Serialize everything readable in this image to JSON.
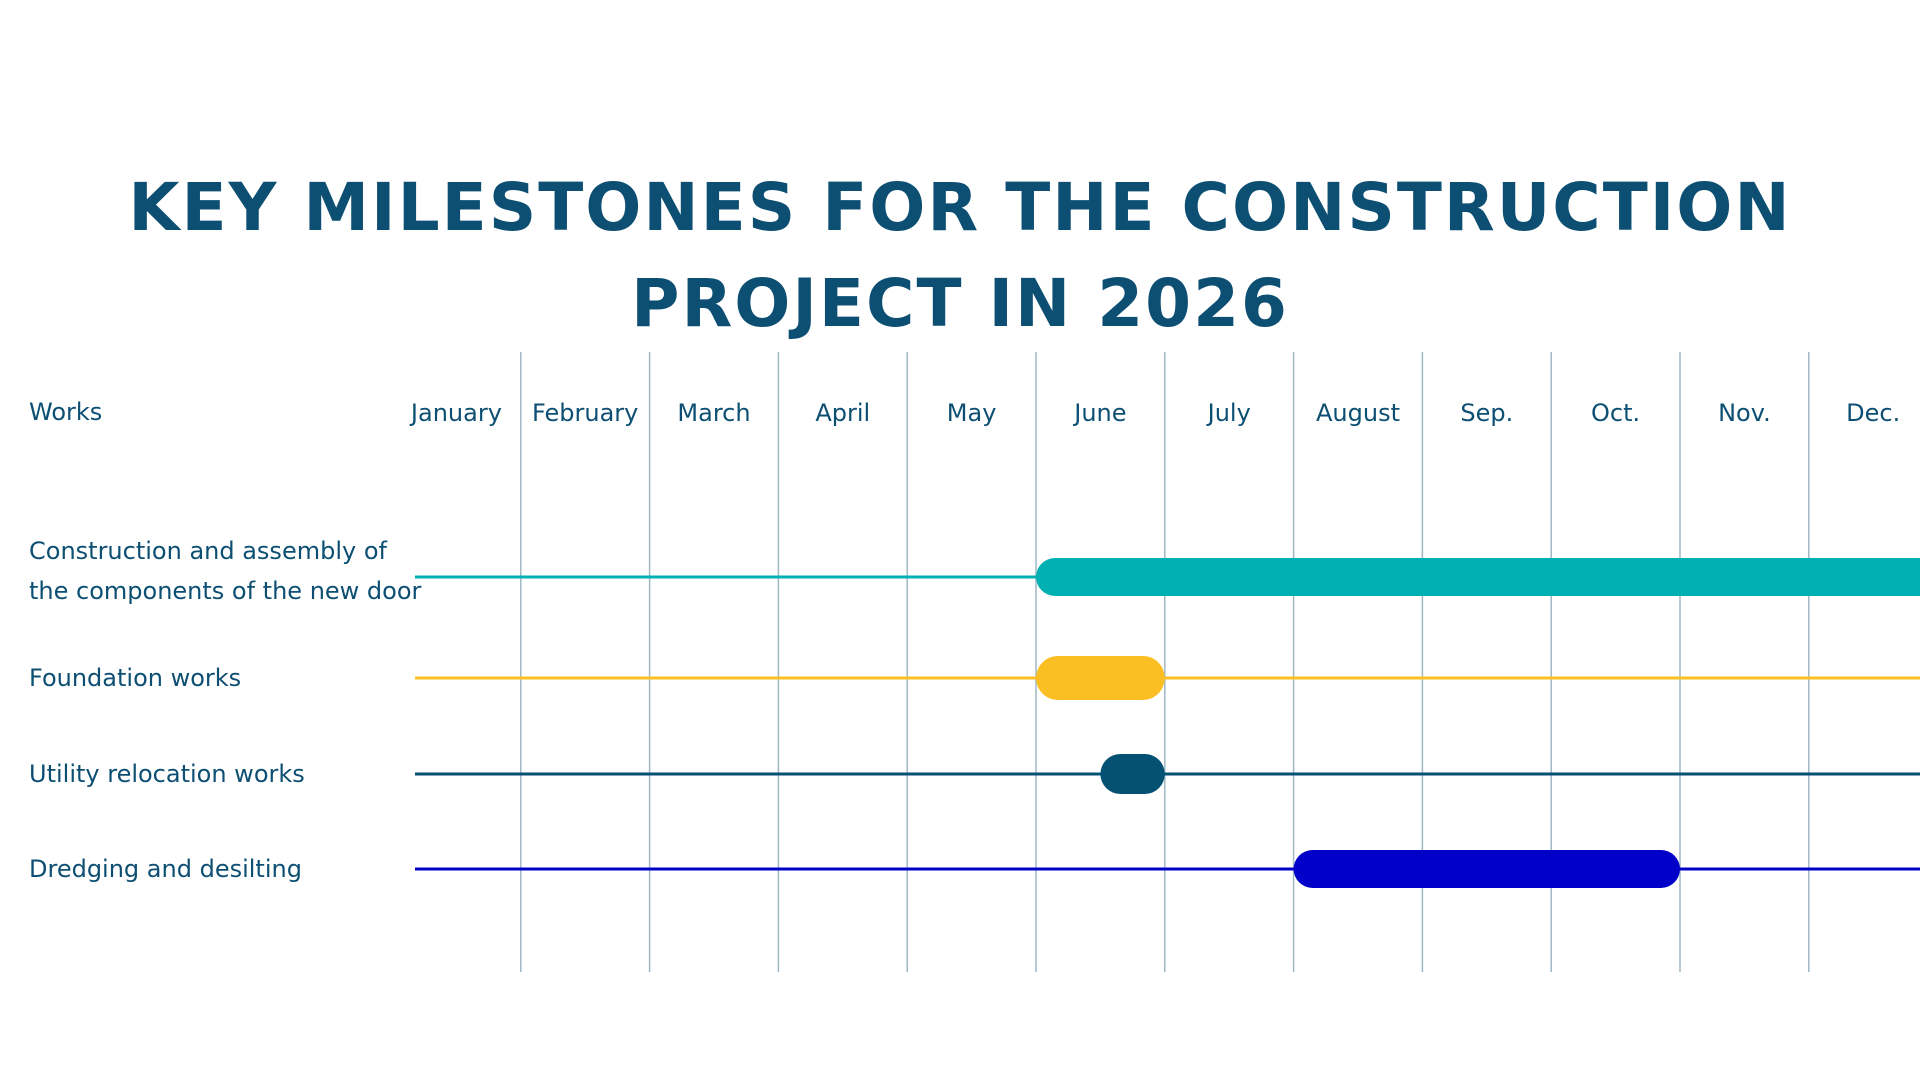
{
  "chart_data": {
    "type": "gantt",
    "title": "Key Milestones for the Construction Project in 2026",
    "row_header": "Works",
    "months": [
      "January",
      "February",
      "March",
      "April",
      "May",
      "June",
      "July",
      "August",
      "Sep.",
      "Oct.",
      "Nov.",
      "Dec."
    ],
    "tasks": [
      {
        "label_lines": [
          "Construction and assembly of",
          "the components of the new door"
        ],
        "start_month": 6,
        "end_month": 12,
        "color": "#00b0b2"
      },
      {
        "label_lines": [
          "Foundation works"
        ],
        "start_month": 6,
        "end_month": 7,
        "color": "#fbbf24"
      },
      {
        "label_lines": [
          "Utility relocation works"
        ],
        "start_month": 6.5,
        "end_month": 7,
        "color": "#045174"
      },
      {
        "label_lines": [
          "Dredging and desilting"
        ],
        "start_month": 8,
        "end_month": 11,
        "color": "#0000c9"
      }
    ],
    "grid": true
  }
}
